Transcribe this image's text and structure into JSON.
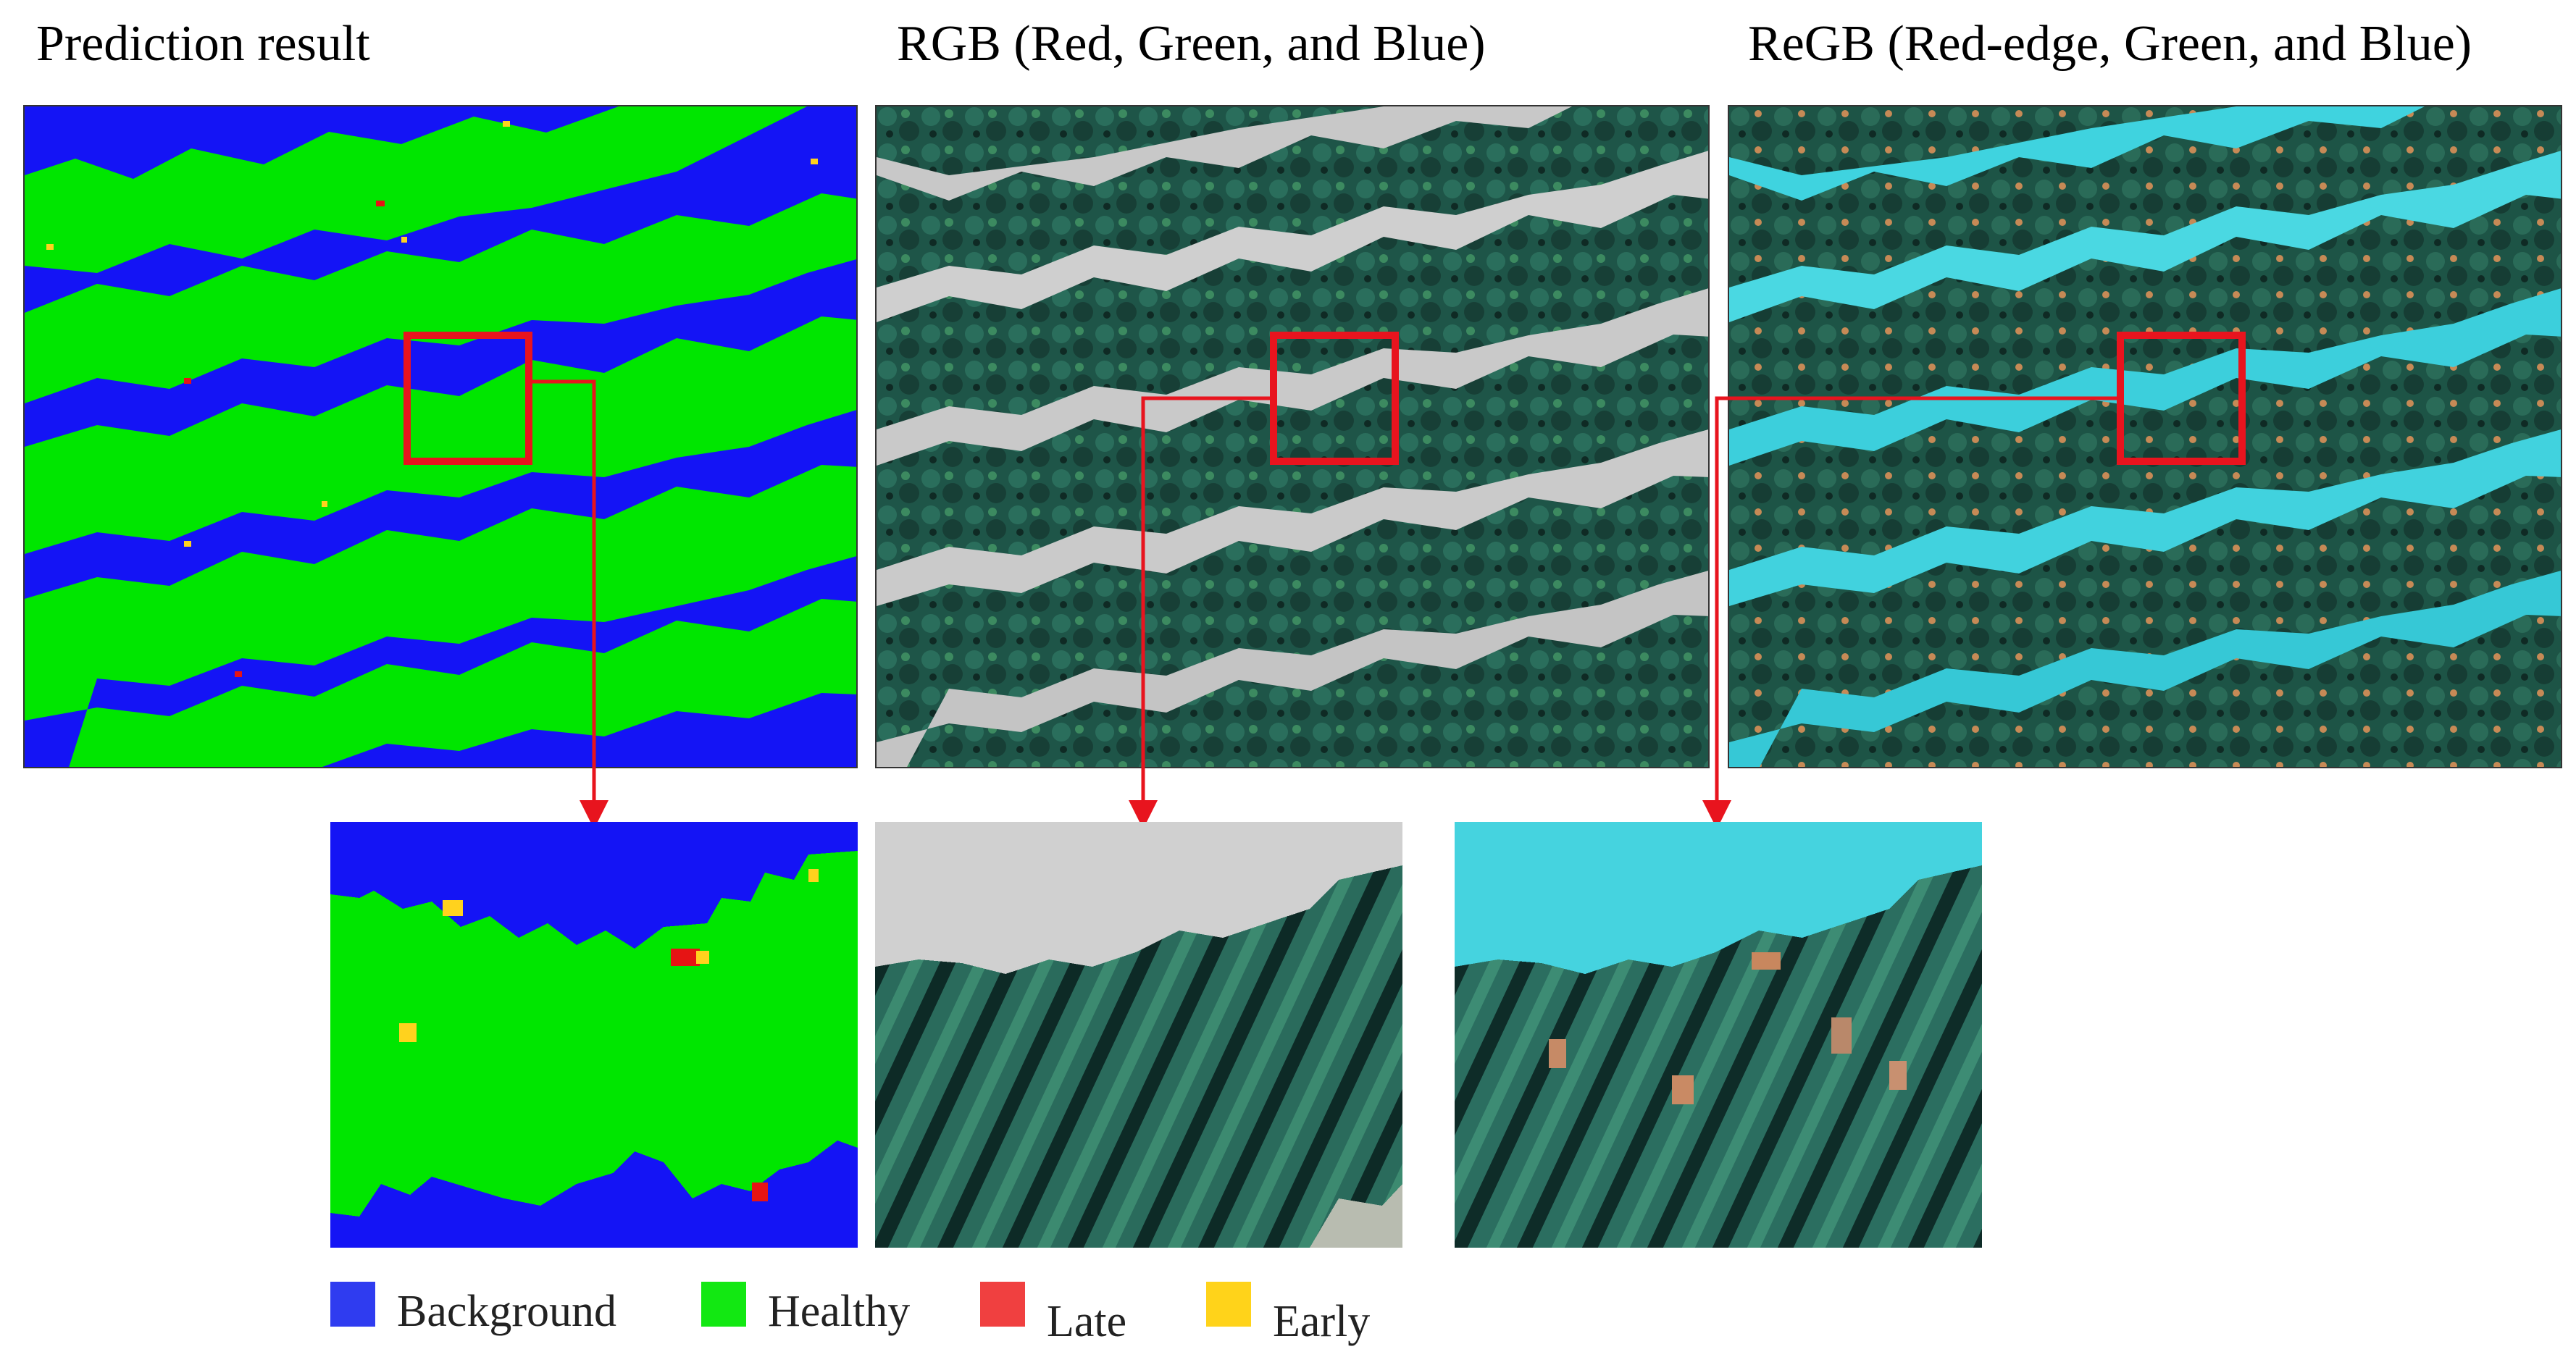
{
  "titles": {
    "prediction": "Prediction result",
    "rgb": "RGB (Red, Green, and Blue)",
    "regb": "ReGB (Red-edge, Green, and Blue)"
  },
  "legend": [
    {
      "label": "Background",
      "color": "#2f3cf0"
    },
    {
      "label": "Healthy",
      "color": "#12e812"
    },
    {
      "label": "Late",
      "color": "#f04040"
    },
    {
      "label": "Early",
      "color": "#ffd31a"
    }
  ],
  "colors": {
    "background_class": "#1414f5",
    "healthy_class": "#00e600",
    "late_class": "#e61414",
    "early_class": "#ffd21e",
    "highlight": "#e8141e",
    "canopy": "#1f5c4c",
    "soil_rgb": "#c9c9c9",
    "soil_regb": "#39d2e0"
  }
}
